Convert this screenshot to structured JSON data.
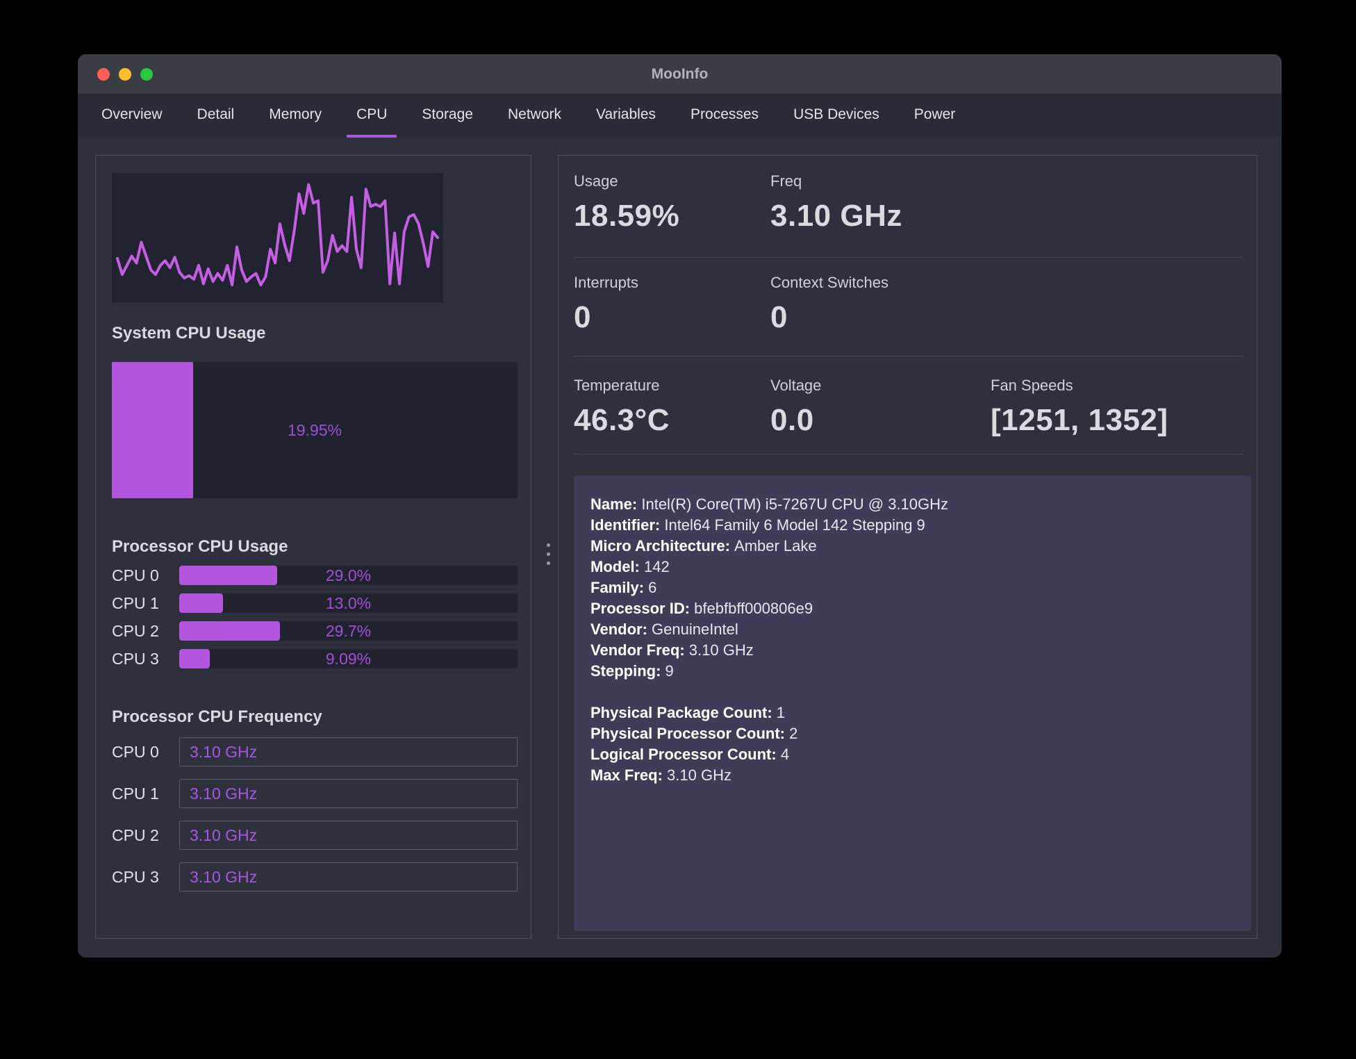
{
  "window": {
    "title": "MooInfo"
  },
  "traffic_lights": {
    "close": "#ff5f57",
    "minimize": "#febc2e",
    "zoom_btn": "#28c840"
  },
  "tabs": [
    "Overview",
    "Detail",
    "Memory",
    "CPU",
    "Storage",
    "Network",
    "Variables",
    "Processes",
    "USB Devices",
    "Power"
  ],
  "active_tab": "CPU",
  "left": {
    "system_heading": "System CPU Usage",
    "usage_heading": "Processor CPU Usage",
    "freq_heading": "Processor CPU Frequency",
    "cpu_freq": [
      {
        "label": "CPU 0",
        "value": "3.10 GHz"
      },
      {
        "label": "CPU 1",
        "value": "3.10 GHz"
      },
      {
        "label": "CPU 2",
        "value": "3.10 GHz"
      },
      {
        "label": "CPU 3",
        "value": "3.10 GHz"
      }
    ]
  },
  "right": {
    "stats": {
      "usage": {
        "label": "Usage",
        "value": "18.59%"
      },
      "freq": {
        "label": "Freq",
        "value": "3.10 GHz"
      },
      "interrupts": {
        "label": "Interrupts",
        "value": "0"
      },
      "context_switches": {
        "label": "Context Switches",
        "value": "0"
      },
      "temperature": {
        "label": "Temperature",
        "value": "46.3°C"
      },
      "voltage": {
        "label": "Voltage",
        "value": "0.0"
      },
      "fan_speeds": {
        "label": "Fan Speeds",
        "value": "[1251, 1352]"
      }
    },
    "info_lines": [
      {
        "label": "Name",
        "value": "Intel(R) Core(TM) i5-7267U CPU @ 3.10GHz"
      },
      {
        "label": "Identifier",
        "value": "Intel64 Family 6 Model 142 Stepping 9"
      },
      {
        "label": "Micro Architecture",
        "value": "Amber Lake"
      },
      {
        "label": "Model",
        "value": "142"
      },
      {
        "label": "Family",
        "value": "6"
      },
      {
        "label": "Processor ID",
        "value": "bfebfbff000806e9"
      },
      {
        "label": "Vendor",
        "value": "GenuineIntel"
      },
      {
        "label": "Vendor Freq",
        "value": "3.10 GHz"
      },
      {
        "label": "Stepping",
        "value": "9"
      },
      {
        "blank": true
      },
      {
        "label": "Physical Package Count",
        "value": "1"
      },
      {
        "label": "Physical Processor Count",
        "value": "2"
      },
      {
        "label": "Logical Processor Count",
        "value": "4"
      },
      {
        "label": "Max Freq",
        "value": "3.10 GHz"
      }
    ]
  },
  "chart_data": [
    {
      "id": "cpu_history",
      "type": "line",
      "title": "CPU usage history sparkline",
      "xlabel": "",
      "ylabel": "",
      "ylim": [
        0,
        100
      ],
      "grid": false,
      "line_color": "#c45fe3",
      "background": "#222330",
      "values": [
        32,
        18,
        26,
        34,
        28,
        46,
        34,
        22,
        18,
        26,
        30,
        24,
        33,
        20,
        15,
        17,
        14,
        26,
        10,
        23,
        12,
        19,
        13,
        26,
        9,
        42,
        22,
        12,
        16,
        19,
        9,
        16,
        40,
        28,
        62,
        44,
        30,
        56,
        88,
        71,
        96,
        80,
        82,
        20,
        30,
        52,
        38,
        43,
        38,
        85,
        40,
        24,
        92,
        77,
        79,
        77,
        82,
        10,
        54,
        10,
        55,
        68,
        70,
        62,
        45,
        25,
        55,
        50
      ]
    },
    {
      "id": "system_cpu_usage",
      "type": "bar",
      "title": "System CPU Usage",
      "categories": [
        "System"
      ],
      "values": [
        19.95
      ],
      "labels": [
        "19.95%"
      ],
      "xlim": [
        0,
        100
      ],
      "bar_color": "#b455de"
    },
    {
      "id": "processor_cpu_usage",
      "type": "bar",
      "title": "Processor CPU Usage",
      "categories": [
        "CPU 0",
        "CPU 1",
        "CPU 2",
        "CPU 3"
      ],
      "values": [
        29.0,
        13.0,
        29.7,
        9.09
      ],
      "labels": [
        "29.0%",
        "13.0%",
        "29.7%",
        "9.09%"
      ],
      "xlim": [
        0,
        100
      ],
      "bar_color": "#b455de"
    }
  ],
  "colors": {
    "accent": "#b455de",
    "tab_underline": "#a855e0",
    "window_bg": "#2e303c",
    "panel_border": "#4e5062",
    "chart_bg": "#222330",
    "info_bg": "#3d3d57"
  }
}
